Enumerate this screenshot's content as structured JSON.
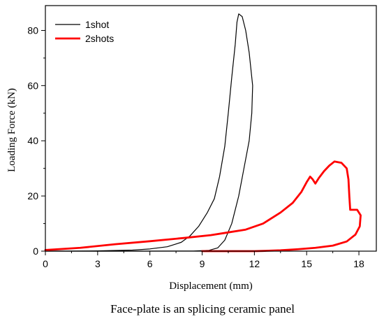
{
  "chart_data": {
    "type": "line",
    "caption": "Face-plate is an splicing ceramic panel",
    "xlabel": "Displacement (mm)",
    "ylabel": "Loading Force (kN)",
    "xlim": [
      0,
      19
    ],
    "ylim": [
      0,
      89
    ],
    "x_ticks": [
      "0",
      "3",
      "6",
      "9",
      "12",
      "15",
      "18"
    ],
    "y_ticks": [
      "0",
      "20",
      "40",
      "60",
      "80"
    ],
    "x_tick_values": [
      0,
      3,
      6,
      9,
      12,
      15,
      18
    ],
    "y_tick_values": [
      0,
      20,
      40,
      60,
      80
    ],
    "legend_position": "top-left",
    "series": [
      {
        "name": "1shot",
        "color": "#000000",
        "width": 1.2,
        "points": [
          [
            0,
            0
          ],
          [
            3,
            0.1
          ],
          [
            5,
            0.4
          ],
          [
            6,
            0.8
          ],
          [
            7,
            1.6
          ],
          [
            7.8,
            3.2
          ],
          [
            8.3,
            5.5
          ],
          [
            8.8,
            9
          ],
          [
            9.3,
            14
          ],
          [
            9.7,
            19
          ],
          [
            10.0,
            27
          ],
          [
            10.3,
            38
          ],
          [
            10.5,
            50
          ],
          [
            10.7,
            63
          ],
          [
            10.9,
            75
          ],
          [
            11.0,
            83
          ],
          [
            11.1,
            86
          ],
          [
            11.3,
            85
          ],
          [
            11.5,
            80
          ],
          [
            11.7,
            72
          ],
          [
            11.9,
            60
          ],
          [
            11.85,
            50
          ],
          [
            11.7,
            40
          ],
          [
            11.4,
            30
          ],
          [
            11.1,
            20
          ],
          [
            10.7,
            10
          ],
          [
            10.3,
            4
          ],
          [
            9.9,
            1.2
          ],
          [
            9.4,
            0.3
          ],
          [
            8.5,
            0.05
          ],
          [
            5,
            0
          ],
          [
            0,
            0
          ]
        ]
      },
      {
        "name": "2shots",
        "color": "#ff0000",
        "width": 2.8,
        "points": [
          [
            0,
            0.4
          ],
          [
            2,
            1.2
          ],
          [
            4,
            2.5
          ],
          [
            6,
            3.6
          ],
          [
            8,
            4.8
          ],
          [
            9.5,
            5.8
          ],
          [
            10.5,
            6.8
          ],
          [
            11.5,
            7.8
          ],
          [
            12.5,
            10
          ],
          [
            13.5,
            14
          ],
          [
            14.2,
            17.5
          ],
          [
            14.7,
            21.5
          ],
          [
            15.0,
            25
          ],
          [
            15.2,
            27
          ],
          [
            15.35,
            26
          ],
          [
            15.5,
            24.5
          ],
          [
            15.7,
            26.5
          ],
          [
            16.0,
            29
          ],
          [
            16.3,
            31
          ],
          [
            16.6,
            32.5
          ],
          [
            17.0,
            32
          ],
          [
            17.3,
            30
          ],
          [
            17.4,
            26
          ],
          [
            17.45,
            20
          ],
          [
            17.5,
            15
          ],
          [
            17.9,
            15
          ],
          [
            18.1,
            13
          ],
          [
            18.05,
            9
          ],
          [
            17.8,
            6
          ],
          [
            17.3,
            3.5
          ],
          [
            16.5,
            2
          ],
          [
            15.5,
            1.2
          ],
          [
            14.5,
            0.7
          ],
          [
            13.5,
            0.3
          ],
          [
            12.5,
            0.08
          ],
          [
            12,
            0
          ],
          [
            9,
            0
          ]
        ]
      }
    ]
  }
}
